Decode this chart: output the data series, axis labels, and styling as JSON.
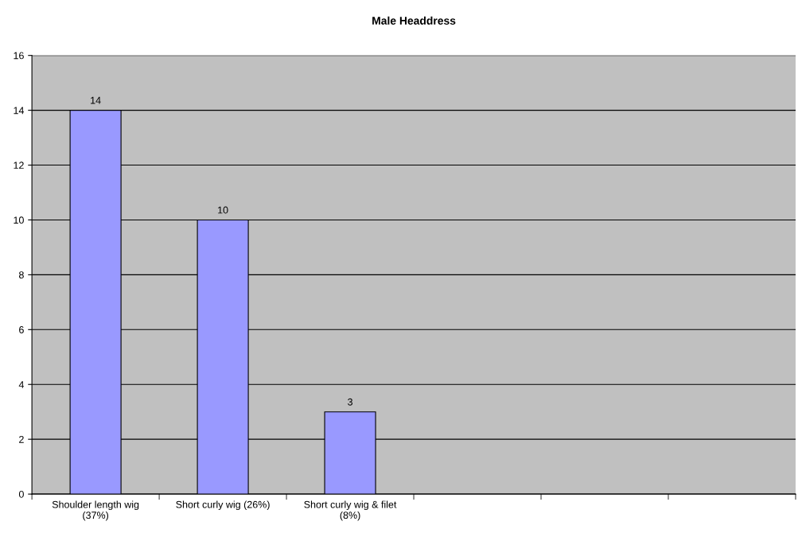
{
  "chart_data": {
    "type": "bar",
    "title": "Male Headdress",
    "categories": [
      "Shoulder length wig\n(37%)",
      "Short curly wig (26%)",
      "Short curly wig & filet\n(8%)",
      null,
      null,
      null
    ],
    "values": [
      14,
      10,
      3,
      null,
      null,
      null
    ],
    "color": "#9999ff",
    "ylim": [
      0,
      16
    ],
    "yticks": [
      0,
      2,
      4,
      6,
      8,
      10,
      12,
      14,
      16
    ],
    "grid": "y",
    "data_labels": true
  }
}
